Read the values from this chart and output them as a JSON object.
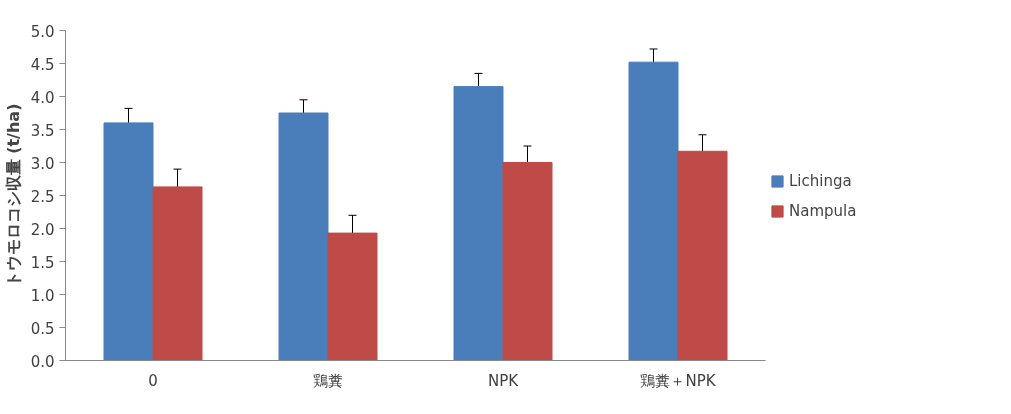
{
  "chart_data": {
    "type": "bar",
    "ylabel": "トウモロコシ収量 (t/ha)",
    "categories": [
      "0",
      "鶏糞",
      "NPK",
      "鶏糞＋NPK"
    ],
    "series": [
      {
        "name": "Lichinga",
        "color": "#4a7ebb",
        "values": [
          3.6,
          3.75,
          4.15,
          4.52
        ],
        "errors": [
          0.22,
          0.2,
          0.2,
          0.2
        ]
      },
      {
        "name": "Nampula",
        "color": "#be4b48",
        "values": [
          2.63,
          1.93,
          3.0,
          3.17
        ],
        "errors": [
          0.27,
          0.27,
          0.25,
          0.25
        ]
      }
    ],
    "ylim": [
      0,
      5
    ],
    "yticks": [
      {
        "value": 0,
        "label": "0.0"
      },
      0.5,
      {
        "value": 1,
        "label": "1.0"
      },
      1.5,
      {
        "value": 2,
        "label": "2.0"
      },
      2.5,
      {
        "value": 3,
        "label": "3.0"
      },
      3.5,
      {
        "value": 4,
        "label": "4.0"
      },
      4.5,
      {
        "value": 5,
        "label": "5.0"
      }
    ],
    "grid": false,
    "legend": "right"
  }
}
